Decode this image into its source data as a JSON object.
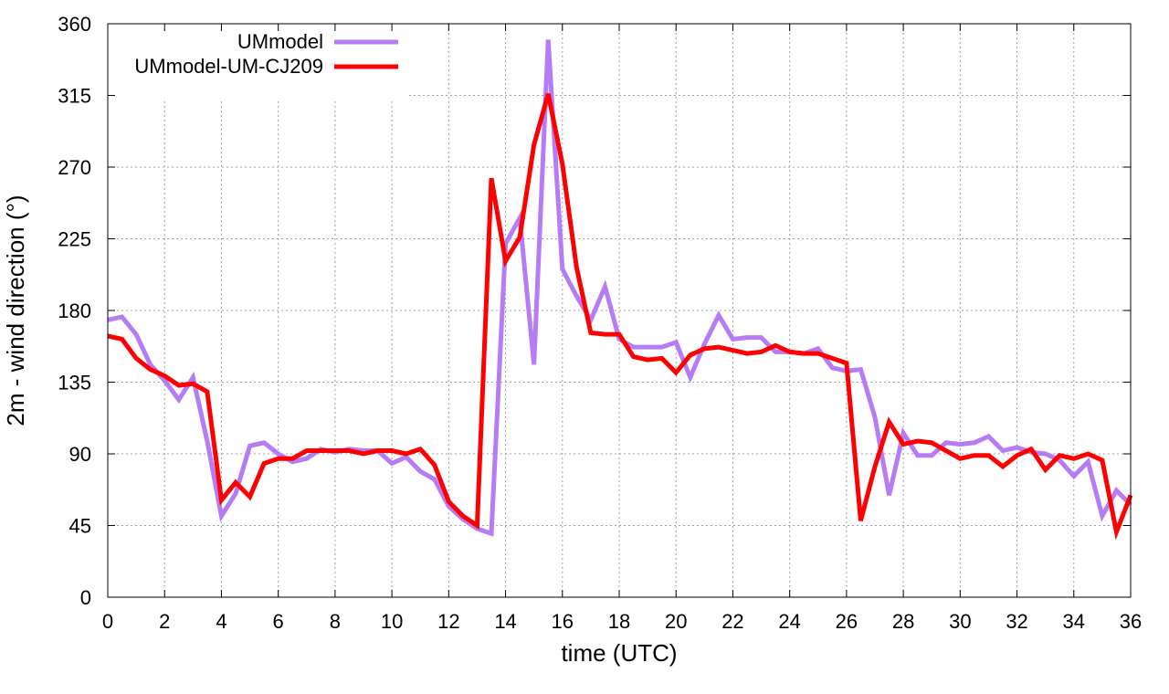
{
  "chart_data": {
    "type": "line",
    "xlabel": "time (UTC)",
    "ylabel": "2m - wind direction (°)",
    "xlim": [
      0,
      36
    ],
    "ylim": [
      0,
      360
    ],
    "xticks": [
      0,
      2,
      4,
      6,
      8,
      10,
      12,
      14,
      16,
      18,
      20,
      22,
      24,
      26,
      28,
      30,
      32,
      34,
      36
    ],
    "yticks": [
      0,
      45,
      90,
      135,
      180,
      225,
      270,
      315,
      360
    ],
    "grid": true,
    "legend_position": "top-left",
    "series": [
      {
        "name": "UMmodel",
        "color": "#b57cf5",
        "x": [
          0,
          0.5,
          1,
          1.5,
          2,
          2.5,
          3,
          3.5,
          4,
          4.5,
          5,
          5.5,
          6,
          6.5,
          7,
          7.5,
          8,
          8.5,
          9,
          9.5,
          10,
          10.5,
          11,
          11.5,
          12,
          12.5,
          13,
          13.5,
          14,
          14.5,
          15,
          15.5,
          16,
          16.5,
          17,
          17.5,
          18,
          18.5,
          19,
          19.5,
          20,
          20.5,
          21,
          21.5,
          22,
          22.5,
          23,
          23.5,
          24,
          24.5,
          25,
          25.5,
          26,
          26.5,
          27,
          27.5,
          28,
          28.5,
          29,
          29.5,
          30,
          30.5,
          31,
          31.5,
          32,
          32.5,
          33,
          33.5,
          34,
          34.5,
          35,
          35.5,
          36
        ],
        "y": [
          174,
          176,
          165,
          146,
          136,
          124,
          138,
          98,
          51,
          65,
          95,
          97,
          90,
          85,
          87,
          93,
          91,
          93,
          92,
          92,
          84,
          88,
          79,
          74,
          57,
          49,
          43,
          40,
          222,
          238,
          146,
          350,
          206,
          189,
          174,
          195,
          162,
          157,
          157,
          157,
          160,
          138,
          159,
          177,
          162,
          163,
          163,
          154,
          154,
          153,
          156,
          144,
          142,
          143,
          113,
          64,
          103,
          89,
          89,
          97,
          96,
          97,
          101,
          92,
          94,
          91,
          90,
          86,
          76,
          85,
          51,
          67,
          58
        ]
      },
      {
        "name": "UMmodel-UM-CJ209",
        "color": "#ff0000",
        "x": [
          0,
          0.5,
          1,
          1.5,
          2,
          2.5,
          3,
          3.5,
          4,
          4.5,
          5,
          5.5,
          6,
          6.5,
          7,
          7.5,
          8,
          8.5,
          9,
          9.5,
          10,
          10.5,
          11,
          11.5,
          12,
          12.5,
          13,
          13.5,
          14,
          14.5,
          15,
          15.5,
          16,
          16.5,
          17,
          17.5,
          18,
          18.5,
          19,
          19.5,
          20,
          20.5,
          21,
          21.5,
          22,
          22.5,
          23,
          23.5,
          24,
          24.5,
          25,
          25.5,
          26,
          26.5,
          27,
          27.5,
          28,
          28.5,
          29,
          29.5,
          30,
          30.5,
          31,
          31.5,
          32,
          32.5,
          33,
          33.5,
          34,
          34.5,
          35,
          35.5,
          36
        ],
        "y": [
          164,
          162,
          150,
          143,
          139,
          133,
          134,
          129,
          61,
          72,
          63,
          84,
          87,
          87,
          92,
          92,
          92,
          92,
          90,
          92,
          92,
          90,
          93,
          83,
          60,
          51,
          45,
          263,
          211,
          226,
          284,
          316,
          272,
          207,
          166,
          165,
          165,
          151,
          149,
          150,
          141,
          152,
          156,
          157,
          155,
          153,
          154,
          158,
          154,
          153,
          153,
          150,
          147,
          48,
          82,
          110,
          96,
          98,
          97,
          92,
          87,
          89,
          89,
          82,
          89,
          93,
          80,
          89,
          87,
          90,
          86,
          41,
          64
        ]
      }
    ]
  }
}
